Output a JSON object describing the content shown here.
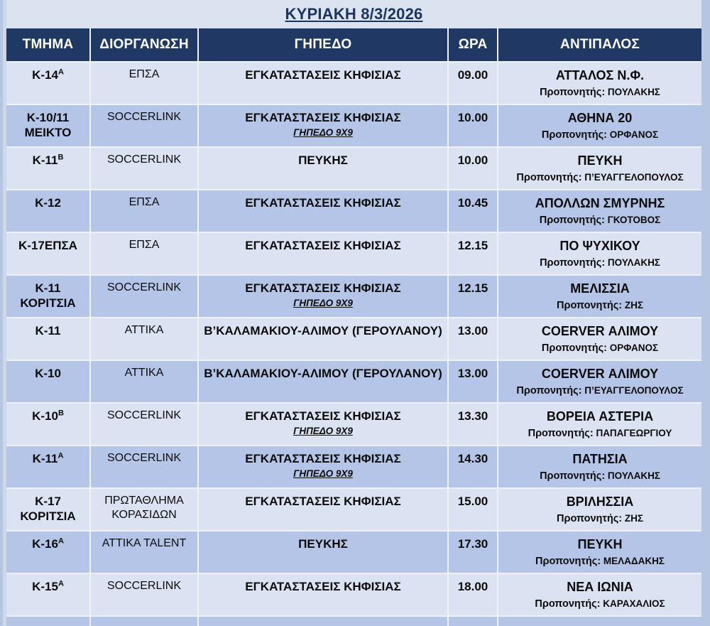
{
  "title": "ΚΥΡΙΑΚΗ 8/3/2026",
  "colors": {
    "header_bg": "#1f3864",
    "header_text": "#ffffff",
    "row_light": "#dbe2f1",
    "row_dark": "#b4c5e7",
    "title_text": "#1c355f",
    "page_edge": "#b5c6e3",
    "sheet_bg": "#dbe2f0"
  },
  "table": {
    "headers": [
      "ΤΜΗΜΑ",
      "ΔΙΟΡΓΑΝΩΣΗ",
      "ΓΗΠΕΔΟ",
      "ΩΡΑ",
      "ΑΝΤΙΠΑΛΟΣ"
    ],
    "coach_label": "Προπονητής:",
    "rows": [
      {
        "team": "K-14",
        "team_sup": "A",
        "team_line2": "",
        "org": "ΕΠΣΑ",
        "venue": "ΕΓΚΑΤΑΣΤΑΣΕΙΣ ΚΗΦΙΣΙΑΣ",
        "venue_note": "",
        "time": "09.00",
        "opponent": "ΑΤΤΑΛΟΣ Ν.Φ.",
        "coach": "ΠΟΥΛΑΚΗΣ"
      },
      {
        "team": "K-10/11",
        "team_sup": "",
        "team_line2": "ΜΕΙΚΤΟ",
        "org": "SOCCERLINK",
        "venue": "ΕΓΚΑΤΑΣΤΑΣΕΙΣ ΚΗΦΙΣΙΑΣ",
        "venue_note": "ΓΗΠΕΔΟ 9Χ9",
        "time": "10.00",
        "opponent": "ΑΘΗΝΑ 20",
        "coach": "ΟΡΦΑΝΟΣ"
      },
      {
        "team": "K-11",
        "team_sup": "B",
        "team_line2": "",
        "org": "SOCCERLINK",
        "venue": "ΠΕΥΚΗΣ",
        "venue_note": "",
        "time": "10.00",
        "opponent": "ΠΕΥΚΗ",
        "coach": "Π’ΕΥΑΓΓΕΛΟΠΟΥΛΟΣ"
      },
      {
        "team": "K-12",
        "team_sup": "",
        "team_line2": "",
        "org": "ΕΠΣΑ",
        "venue": "ΕΓΚΑΤΑΣΤΑΣΕΙΣ ΚΗΦΙΣΙΑΣ",
        "venue_note": "",
        "time": "10.45",
        "opponent": "ΑΠΟΛΛΩΝ ΣΜΥΡΝΗΣ",
        "coach": "ΓΚΟΤΟΒΟΣ"
      },
      {
        "team": "K-17ΕΠΣΑ",
        "team_sup": "",
        "team_line2": "",
        "org": "ΕΠΣΑ",
        "venue": "ΕΓΚΑΤΑΣΤΑΣΕΙΣ ΚΗΦΙΣΙΑΣ",
        "venue_note": "",
        "time": "12.15",
        "opponent": "ΠΟ ΨΥΧΙΚΟΥ",
        "coach": "ΠΟΥΛΑΚΗΣ"
      },
      {
        "team": "K-11",
        "team_sup": "",
        "team_line2": "ΚΟΡΙΤΣΙΑ",
        "org": "SOCCERLINK",
        "venue": "ΕΓΚΑΤΑΣΤΑΣΕΙΣ ΚΗΦΙΣΙΑΣ",
        "venue_note": "ΓΗΠΕΔΟ 9Χ9",
        "time": "12.15",
        "opponent": "ΜΕΛΙΣΣΙΑ",
        "coach": "ΖΗΣ"
      },
      {
        "team": "K-11",
        "team_sup": "",
        "team_line2": "",
        "org": "ΑΤΤΙΚΑ",
        "venue": "Β’ΚΑΛΑΜΑΚΙΟΥ-ΑΛΙΜΟΥ (ΓΕΡΟΥΛΑΝΟΥ)",
        "venue_note": "",
        "time": "13.00",
        "opponent": "COERVER ΑΛΙΜΟΥ",
        "coach": "ΟΡΦΑΝΟΣ"
      },
      {
        "team": "K-10",
        "team_sup": "",
        "team_line2": "",
        "org": "ΑΤΤΙΚΑ",
        "venue": "Β’ΚΑΛΑΜΑΚΙΟΥ-ΑΛΙΜΟΥ (ΓΕΡΟΥΛΑΝΟΥ)",
        "venue_note": "",
        "time": "13.00",
        "opponent": "COERVER ΑΛΙΜΟΥ",
        "coach": "Π’ΕΥΑΓΓΕΛΟΠΟΥΛΟΣ"
      },
      {
        "team": "K-10",
        "team_sup": "B",
        "team_line2": "",
        "org": "SOCCERLINK",
        "venue": "ΕΓΚΑΤΑΣΤΑΣΕΙΣ ΚΗΦΙΣΙΑΣ",
        "venue_note": "ΓΗΠΕΔΟ 9Χ9",
        "time": "13.30",
        "opponent": "ΒΟΡΕΙΑ ΑΣΤΕΡΙΑ",
        "coach": "ΠΑΠΑΓΕΩΡΓΙΟΥ"
      },
      {
        "team": "K-11",
        "team_sup": "A",
        "team_line2": "",
        "org": "SOCCERLINK",
        "venue": "ΕΓΚΑΤΑΣΤΑΣΕΙΣ ΚΗΦΙΣΙΑΣ",
        "venue_note": "ΓΗΠΕΔΟ 9Χ9",
        "time": "14.30",
        "opponent": "ΠΑΤΗΣΙΑ",
        "coach": "ΠΟΥΛΑΚΗΣ"
      },
      {
        "team": "K-17",
        "team_sup": "",
        "team_line2": "ΚΟΡΙΤΣΙΑ",
        "org": "ΠΡΩΤΑΘΛΗΜΑ ΚΟΡΑΣΙΔΩΝ",
        "venue": "ΕΓΚΑΤΑΣΤΑΣΕΙΣ ΚΗΦΙΣΙΑΣ",
        "venue_note": "",
        "time": "15.00",
        "opponent": "ΒΡΙΛΗΣΣΙΑ",
        "coach": "ΖΗΣ"
      },
      {
        "team": "K-16",
        "team_sup": "A",
        "team_line2": "",
        "org": "ΑΤΤΙΚΑ TALENT",
        "venue": "ΠΕΥΚΗΣ",
        "venue_note": "",
        "time": "17.30",
        "opponent": "ΠΕΥΚΗ",
        "coach": "ΜΕΛΑΔΑΚΗΣ"
      },
      {
        "team": "K-15",
        "team_sup": "A",
        "team_line2": "",
        "org": "SOCCERLINK",
        "venue": "ΕΓΚΑΤΑΣΤΑΣΕΙΣ ΚΗΦΙΣΙΑΣ",
        "venue_note": "",
        "time": "18.00",
        "opponent": "ΝΕΑ ΙΩΝΙΑ",
        "coach": "ΚΑΡΑΧΑΛΙΟΣ"
      }
    ]
  }
}
